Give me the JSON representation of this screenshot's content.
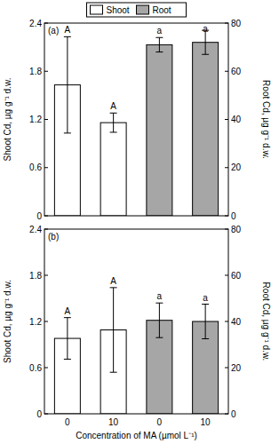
{
  "chart_data": [
    {
      "type": "bar",
      "title": "(a)",
      "categories": [
        null,
        null,
        null,
        null
      ],
      "series": [
        {
          "name": "Shoot",
          "color": "#ffffff",
          "values": [
            1.63,
            1.16,
            null,
            null
          ],
          "errors": [
            0.6,
            0.12,
            null,
            null
          ],
          "labels": [
            "A",
            "A",
            null,
            null
          ]
        },
        {
          "name": "Root",
          "color": "#a6a6a6",
          "axis": "y2",
          "values": [
            null,
            null,
            71,
            72
          ],
          "errors": [
            null,
            null,
            3,
            5
          ],
          "labels": [
            null,
            null,
            "a",
            "a"
          ]
        }
      ],
      "ylabel": "Shoot Cd, µg g⁻¹ d.w.",
      "y2label": "Root Cd, µg g⁻¹ d.w.",
      "ylim": [
        0,
        2.4
      ],
      "yticks": [
        0,
        0.6,
        1.2,
        1.8,
        2.4
      ],
      "y2lim": [
        0,
        80
      ],
      "y2ticks": [
        0,
        20,
        40,
        60,
        80
      ],
      "legend": "top"
    },
    {
      "type": "bar",
      "title": "(b)",
      "categories": [
        "0",
        "10",
        "0",
        "10"
      ],
      "xlabel": "Concentration of MA (µmol L⁻¹)",
      "series": [
        {
          "color": "#ffffff",
          "values": [
            0.98,
            1.09,
            null,
            null
          ],
          "errors": [
            0.27,
            0.55,
            null,
            null
          ],
          "labels": [
            "A",
            "A",
            null,
            null
          ]
        },
        {
          "color": "#a6a6a6",
          "axis": "y2",
          "values": [
            null,
            null,
            40.5,
            40
          ],
          "errors": [
            null,
            null,
            7.5,
            7.5
          ],
          "labels": [
            null,
            null,
            "a",
            "a"
          ]
        }
      ],
      "ylabel": "Shoot Cd, µg g⁻¹ d.w.",
      "y2label": "Root Cd, µg g⁻¹ d.w.",
      "ylim": [
        0,
        2.4
      ],
      "yticks": [
        0,
        0.6,
        1.2,
        1.8,
        2.4
      ],
      "y2lim": [
        0,
        80
      ],
      "y2ticks": [
        0,
        20,
        40,
        60,
        80
      ]
    }
  ]
}
